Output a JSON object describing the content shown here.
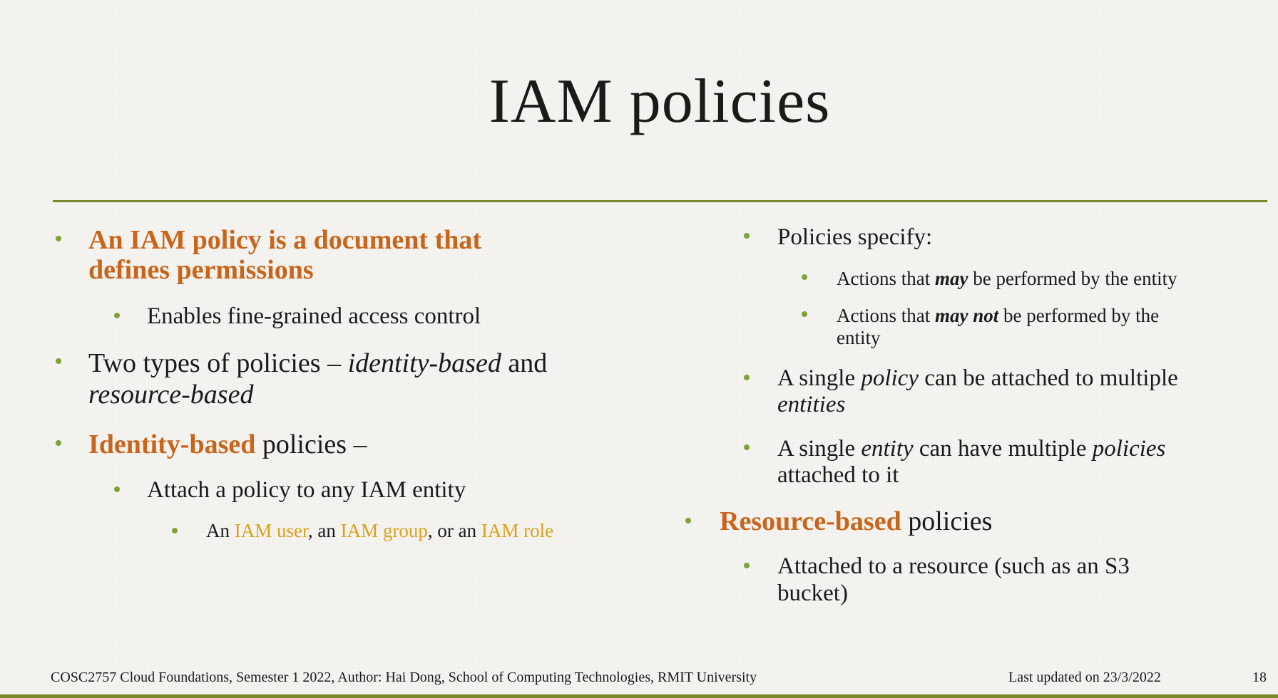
{
  "slide": {
    "title": "IAM policies",
    "left": {
      "b1": {
        "line1": "An IAM policy is a document that",
        "line2": "defines permissions"
      },
      "b1_sub": "Enables fine-grained access control",
      "b2": {
        "part1": "Two types of  policies – ",
        "italic1": "identity-based",
        "part2": " and",
        "italic2": "resource-based"
      },
      "b3": {
        "highlight": "Identity-based",
        "rest": " policies –"
      },
      "b3_sub": "Attach a policy to any IAM entity",
      "b3_subsub": {
        "p1": "An ",
        "user": "IAM user",
        "p2": ", an ",
        "group": "IAM group",
        "p3": ", or an ",
        "role": "IAM role"
      }
    },
    "right": {
      "b1": "Policies specify:",
      "s1": {
        "p1": "Actions that ",
        "em": "may",
        "p2": " be performed by the entity"
      },
      "s2": {
        "p1": "Actions that ",
        "em": "may not",
        "p2": " be performed by the",
        "line2": "entity"
      },
      "b2": {
        "p1": "A single ",
        "i1": "policy",
        "p2": " can be attached to multiple",
        "i2": "entities"
      },
      "b3": {
        "p1": "A single ",
        "i1": "entity",
        "p2": " can have multiple ",
        "i2": "policies",
        "line2": "attached to it"
      },
      "b4": {
        "highlight": "Resource-based",
        "rest": " policies"
      },
      "b4_sub": {
        "line1": "Attached to a resource (such as an S3",
        "line2": "bucket)"
      }
    },
    "footer": {
      "course": "COSC2757 Cloud Foundations, Semester 1 2022, Author: Hai Dong, School of Computing Technologies, RMIT University",
      "updated": "Last updated on 23/3/2022",
      "page": "18"
    },
    "colors": {
      "accent_orange": "#c8651b",
      "accent_gold": "#d9a21b",
      "rule_green": "#7a8a2a",
      "bullet_green": "#7fa33a"
    }
  }
}
